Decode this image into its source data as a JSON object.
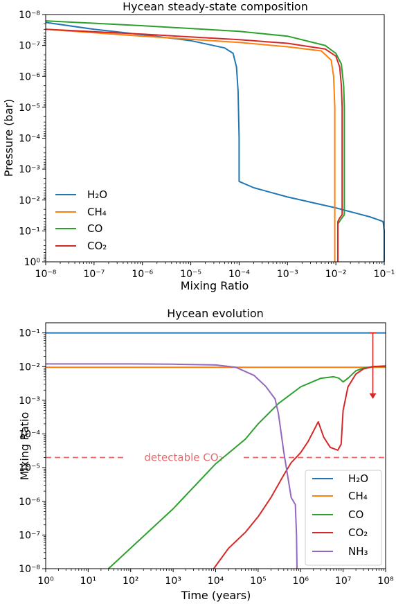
{
  "chart_data": [
    {
      "type": "line",
      "title": "Hycean steady-state composition",
      "xlabel": "Mixing Ratio",
      "ylabel": "Pressure (bar)",
      "xscale": "log",
      "yscale": "log",
      "yinverted": true,
      "xlim": [
        1e-08,
        0.1
      ],
      "ylim": [
        1,
        1e-08
      ],
      "xticks": [
        "10⁻⁸",
        "10⁻⁷",
        "10⁻⁶",
        "10⁻⁵",
        "10⁻⁴",
        "10⁻³",
        "10⁻²",
        "10⁻¹"
      ],
      "yticks": [
        "10⁻⁸",
        "10⁻⁷",
        "10⁻⁶",
        "10⁻⁵",
        "10⁻⁴",
        "10⁻³",
        "10⁻²",
        "10⁻¹",
        "10⁰"
      ],
      "legend": {
        "position": "lower-left",
        "labels": [
          "H₂O",
          "CH₄",
          "CO",
          "CO₂"
        ]
      },
      "series": [
        {
          "name": "H₂O",
          "color": "#1f77b4",
          "points": [
            [
              1e-08,
              1.8e-08
            ],
            [
              1e-07,
              3e-08
            ],
            [
              1e-06,
              4.5e-08
            ],
            [
              1e-05,
              7e-08
            ],
            [
              5e-05,
              1.2e-07
            ],
            [
              7.5e-05,
              1.8e-07
            ],
            [
              8.8e-05,
              5e-07
            ],
            [
              9.5e-05,
              3e-06
            ],
            [
              0.0001,
              0.0001
            ],
            [
              0.0001,
              0.0025
            ],
            [
              0.0002,
              0.004
            ],
            [
              0.001,
              0.008
            ],
            [
              0.01,
              0.018
            ],
            [
              0.05,
              0.035
            ],
            [
              0.08,
              0.045
            ],
            [
              0.095,
              0.05
            ],
            [
              0.1,
              0.1
            ],
            [
              0.1,
              1
            ]
          ]
        },
        {
          "name": "CH₄",
          "color": "#ff7f0e",
          "points": [
            [
              1e-08,
              3e-08
            ],
            [
              1e-06,
              5e-08
            ],
            [
              0.0001,
              8e-08
            ],
            [
              0.001,
              1.1e-07
            ],
            [
              0.005,
              1.5e-07
            ],
            [
              0.008,
              3e-07
            ],
            [
              0.009,
              1e-06
            ],
            [
              0.0095,
              1e-05
            ],
            [
              0.0095,
              1
            ]
          ]
        },
        {
          "name": "CO",
          "color": "#2ca02c",
          "points": [
            [
              1e-08,
              1.6e-08
            ],
            [
              1e-06,
              2.3e-08
            ],
            [
              0.0001,
              3.5e-08
            ],
            [
              0.001,
              5e-08
            ],
            [
              0.006,
              1e-07
            ],
            [
              0.01,
              1.8e-07
            ],
            [
              0.013,
              4e-07
            ],
            [
              0.0145,
              2e-06
            ],
            [
              0.015,
              1e-05
            ],
            [
              0.015,
              0.0001
            ],
            [
              0.015,
              0.03
            ],
            [
              0.013,
              0.04
            ],
            [
              0.011,
              0.06
            ],
            [
              0.011,
              1
            ]
          ]
        },
        {
          "name": "CO₂",
          "color": "#d62728",
          "points": [
            [
              1e-08,
              3e-08
            ],
            [
              1e-06,
              4.3e-08
            ],
            [
              0.0001,
              6.5e-08
            ],
            [
              0.001,
              8.5e-08
            ],
            [
              0.006,
              1.3e-07
            ],
            [
              0.01,
              2.2e-07
            ],
            [
              0.012,
              5e-07
            ],
            [
              0.013,
              2e-06
            ],
            [
              0.0135,
              1e-05
            ],
            [
              0.0135,
              0.03
            ],
            [
              0.012,
              0.038
            ],
            [
              0.011,
              0.05
            ],
            [
              0.011,
              1
            ]
          ]
        }
      ]
    },
    {
      "type": "line",
      "title": "Hycean evolution",
      "xlabel": "Time (years)",
      "ylabel": "Mixing Ratio",
      "xscale": "log",
      "yscale": "log",
      "xlim": [
        1,
        100000000.0
      ],
      "ylim": [
        1e-08,
        0.2
      ],
      "xticks": [
        "10⁰",
        "10¹",
        "10²",
        "10³",
        "10⁴",
        "10⁵",
        "10⁶",
        "10⁷",
        "10⁸"
      ],
      "yticks": [
        "10⁻⁸",
        "10⁻⁷",
        "10⁻⁶",
        "10⁻⁵",
        "10⁻⁴",
        "10⁻³",
        "10⁻²",
        "10⁻¹"
      ],
      "legend": {
        "position": "lower-right",
        "labels": [
          "H₂O",
          "CH₄",
          "CO",
          "CO₂",
          "NH₃"
        ]
      },
      "annotation": {
        "text": "detectable CO₂",
        "value": 2e-05,
        "color": "#e8676a"
      },
      "arrow": {
        "x": 50000000.0,
        "from": 0.1,
        "to": 0.0011,
        "color": "#d62728"
      },
      "series": [
        {
          "name": "H₂O",
          "color": "#1f77b4",
          "points": [
            [
              1,
              0.1
            ],
            [
              100000000.0,
              0.1
            ]
          ]
        },
        {
          "name": "CH₄",
          "color": "#ff7f0e",
          "points": [
            [
              1,
              0.0095
            ],
            [
              100000000.0,
              0.0095
            ]
          ]
        },
        {
          "name": "CO",
          "color": "#2ca02c",
          "points": [
            [
              30,
              1e-08
            ],
            [
              1000.0,
              6e-07
            ],
            [
              10000.0,
              1.3e-05
            ],
            [
              50000.0,
              7e-05
            ],
            [
              100000.0,
              0.0002
            ],
            [
              300000.0,
              0.0008
            ],
            [
              1000000.0,
              0.0025
            ],
            [
              3000000.0,
              0.0045
            ],
            [
              6000000.0,
              0.005
            ],
            [
              8000000.0,
              0.0045
            ],
            [
              10000000.0,
              0.0035
            ],
            [
              13000000.0,
              0.0045
            ],
            [
              20000000.0,
              0.0075
            ],
            [
              30000000.0,
              0.009
            ],
            [
              50000000.0,
              0.01
            ],
            [
              100000000.0,
              0.01
            ]
          ]
        },
        {
          "name": "CO₂",
          "color": "#d62728",
          "points": [
            [
              9000.0,
              1e-08
            ],
            [
              20000.0,
              4e-08
            ],
            [
              50000.0,
              1.2e-07
            ],
            [
              100000.0,
              3.5e-07
            ],
            [
              200000.0,
              1.3e-06
            ],
            [
              400000.0,
              6e-06
            ],
            [
              600000.0,
              1.4e-05
            ],
            [
              1000000.0,
              2.8e-05
            ],
            [
              1500000.0,
              6e-05
            ],
            [
              2600000.0,
              0.00023
            ],
            [
              3500000.0,
              8e-05
            ],
            [
              5000000.0,
              4e-05
            ],
            [
              7500000.0,
              3.3e-05
            ],
            [
              9000000.0,
              5e-05
            ],
            [
              10000000.0,
              0.0005
            ],
            [
              13000000.0,
              0.0025
            ],
            [
              20000000.0,
              0.006
            ],
            [
              30000000.0,
              0.0085
            ],
            [
              50000000.0,
              0.01
            ],
            [
              100000000.0,
              0.0105
            ]
          ]
        },
        {
          "name": "NH₃",
          "color": "#9467bd",
          "points": [
            [
              1,
              0.012
            ],
            [
              100.0,
              0.012
            ],
            [
              1000.0,
              0.0118
            ],
            [
              10000.0,
              0.0112
            ],
            [
              30000.0,
              0.0095
            ],
            [
              80000.0,
              0.0055
            ],
            [
              150000.0,
              0.0026
            ],
            [
              250000.0,
              0.0011
            ],
            [
              300000.0,
              0.0004
            ],
            [
              400000.0,
              3e-05
            ],
            [
              600000.0,
              1.3e-06
            ],
            [
              750000.0,
              8e-07
            ],
            [
              800000.0,
              1e-07
            ],
            [
              820000.0,
              1e-08
            ]
          ]
        }
      ]
    }
  ]
}
